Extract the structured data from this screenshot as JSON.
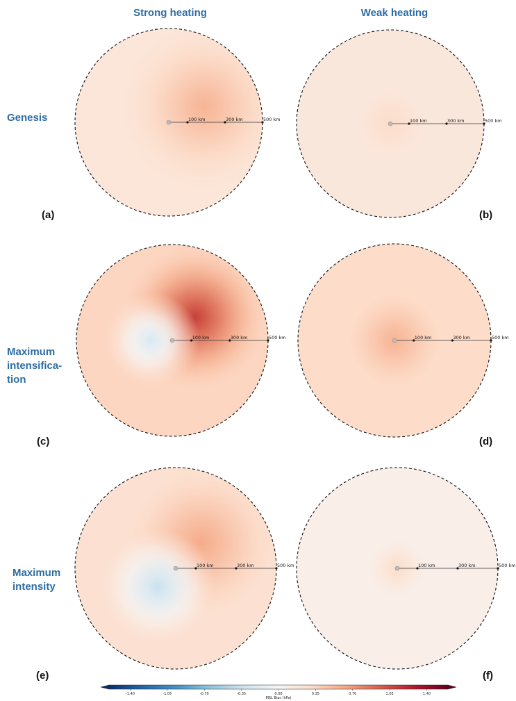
{
  "columns": [
    "Strong heating",
    "Weak heating"
  ],
  "rows": [
    {
      "lines": [
        "Genesis"
      ]
    },
    {
      "lines": [
        "Maximum",
        "intensifica-",
        "tion"
      ]
    },
    {
      "lines": [
        "Maximum",
        "intensity"
      ]
    }
  ],
  "panel_labels": [
    "(a)",
    "(b)",
    "(c)",
    "(d)",
    "(e)",
    "(f)"
  ],
  "scale_labels": [
    "100 km",
    "300 km",
    "500 km"
  ],
  "colorbar": {
    "label": "MSL Bias (hPa)",
    "ticks": [
      "-1.40",
      "-1.05",
      "-0.70",
      "-0.35",
      "0.00",
      "0.35",
      "0.70",
      "1.05",
      "1.40"
    ],
    "vmin": -1.6,
    "vmax": 1.6,
    "colors": [
      "#08306b",
      "#2166ac",
      "#4393c3",
      "#92c5de",
      "#d1e5f0",
      "#f7f7f7",
      "#fddbc7",
      "#f4a582",
      "#d6604d",
      "#b2182b",
      "#67001f"
    ]
  },
  "chart_data": {
    "type": "heatmap",
    "description_units": "MSL Bias (hPa)",
    "radius_km": 500,
    "panels": [
      {
        "label": "(a)",
        "column": "Strong heating",
        "row": "Genesis",
        "background_bias": 0.2,
        "features": [
          {
            "bias": 0.55,
            "direction": "east-northeast",
            "spread_km": 280
          }
        ]
      },
      {
        "label": "(b)",
        "column": "Weak heating",
        "row": "Genesis",
        "background_bias": 0.18,
        "features": [
          {
            "bias": 0.3,
            "direction": "center",
            "spread_km": 130
          }
        ]
      },
      {
        "label": "(c)",
        "column": "Strong heating",
        "row": "Maximum intensification",
        "background_bias": 0.35,
        "features": [
          {
            "bias": 1.1,
            "direction": "northeast",
            "spread_km": 230
          },
          {
            "bias": -0.25,
            "direction": "west",
            "spread_km": 150
          }
        ]
      },
      {
        "label": "(d)",
        "column": "Weak heating",
        "row": "Maximum intensification",
        "background_bias": 0.3,
        "features": [
          {
            "bias": 0.55,
            "direction": "center",
            "spread_km": 160
          }
        ]
      },
      {
        "label": "(e)",
        "column": "Strong heating",
        "row": "Maximum intensity",
        "background_bias": 0.25,
        "features": [
          {
            "bias": 0.6,
            "direction": "northeast",
            "spread_km": 240
          },
          {
            "bias": -0.35,
            "direction": "southwest",
            "spread_km": 170
          }
        ]
      },
      {
        "label": "(f)",
        "column": "Weak heating",
        "row": "Maximum intensity",
        "background_bias": 0.1,
        "features": [
          {
            "bias": 0.3,
            "direction": "center",
            "spread_km": 90
          }
        ]
      }
    ]
  }
}
